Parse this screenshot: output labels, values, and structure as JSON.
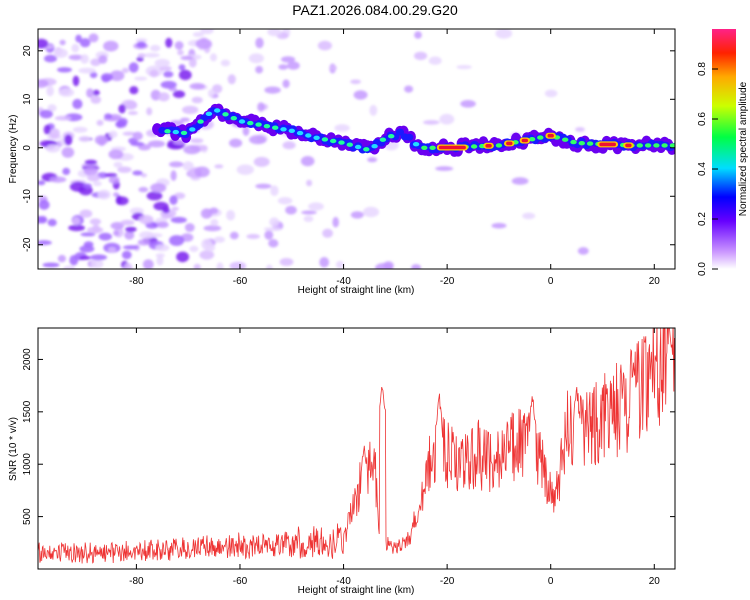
{
  "title": "PAZ1.2026.084.00.29.G20",
  "colors": {
    "snr_line": "#ee3333",
    "frame": "#000000"
  },
  "chart_data": [
    {
      "type": "heatmap",
      "name": "spectrogram",
      "xlabel": "Height of straight line (km)",
      "ylabel": "Frequency (Hz)",
      "xlim": [
        -99,
        24
      ],
      "ylim": [
        -25,
        24.5
      ],
      "xticks": [
        -80,
        -60,
        -40,
        -20,
        0,
        20
      ],
      "yticks": [
        -20,
        -10,
        0,
        10,
        20
      ],
      "ridge": [
        {
          "x": -75,
          "y": 3.5
        },
        {
          "x": -70,
          "y": 3
        },
        {
          "x": -65,
          "y": 8
        },
        {
          "x": -60,
          "y": 5.5
        },
        {
          "x": -55,
          "y": 4.5
        },
        {
          "x": -50,
          "y": 3.5
        },
        {
          "x": -45,
          "y": 2
        },
        {
          "x": -40,
          "y": 1
        },
        {
          "x": -35,
          "y": -0.5
        },
        {
          "x": -32,
          "y": 2
        },
        {
          "x": -29,
          "y": 3
        },
        {
          "x": -25,
          "y": 0
        },
        {
          "x": -20,
          "y": 0
        },
        {
          "x": -10,
          "y": 0.5
        },
        {
          "x": -5,
          "y": 1.5
        },
        {
          "x": 0,
          "y": 2.5
        },
        {
          "x": 5,
          "y": 1
        },
        {
          "x": 15,
          "y": 0.5
        },
        {
          "x": 24,
          "y": 0.5
        }
      ],
      "colorbar": {
        "label": "Normalized spectral amplitude",
        "ticks": [
          "0.0",
          "0.2",
          "0.4",
          "0.6",
          "0.8"
        ],
        "range": [
          0,
          0.96
        ]
      }
    },
    {
      "type": "line",
      "name": "snr",
      "xlabel": "Height of straight line (km)",
      "ylabel": "SNR (10 * v/v)",
      "xlim": [
        -99,
        24
      ],
      "ylim": [
        0,
        2300
      ],
      "xticks": [
        -80,
        -60,
        -40,
        -20,
        0,
        20
      ],
      "yticks": [
        500,
        1000,
        1500,
        2000
      ],
      "trend": [
        {
          "x": -99,
          "y": 150
        },
        {
          "x": -85,
          "y": 160
        },
        {
          "x": -75,
          "y": 180
        },
        {
          "x": -65,
          "y": 200
        },
        {
          "x": -55,
          "y": 230
        },
        {
          "x": -45,
          "y": 250
        },
        {
          "x": -40,
          "y": 300
        },
        {
          "x": -36,
          "y": 900
        },
        {
          "x": -34,
          "y": 1000
        },
        {
          "x": -33,
          "y": 250
        },
        {
          "x": -30,
          "y": 200
        },
        {
          "x": -27,
          "y": 300
        },
        {
          "x": -24,
          "y": 900
        },
        {
          "x": -22,
          "y": 1150
        },
        {
          "x": -18,
          "y": 1000
        },
        {
          "x": -15,
          "y": 1100
        },
        {
          "x": -10,
          "y": 1050
        },
        {
          "x": -7,
          "y": 1200
        },
        {
          "x": -3,
          "y": 1200
        },
        {
          "x": 0,
          "y": 700
        },
        {
          "x": 1,
          "y": 650
        },
        {
          "x": 3,
          "y": 1300
        },
        {
          "x": 8,
          "y": 1400
        },
        {
          "x": 12,
          "y": 1500
        },
        {
          "x": 15,
          "y": 1600
        },
        {
          "x": 19,
          "y": 1900
        },
        {
          "x": 22,
          "y": 2000
        },
        {
          "x": 24,
          "y": 2100
        }
      ],
      "peaks": [
        {
          "x": -36,
          "y": 1200
        },
        {
          "x": -32.5,
          "y": 1780
        },
        {
          "x": -21.5,
          "y": 1650
        },
        {
          "x": -3.5,
          "y": 1650
        },
        {
          "x": 5,
          "y": 1720
        },
        {
          "x": 16,
          "y": 1900
        },
        {
          "x": 23,
          "y": 2300
        }
      ]
    }
  ]
}
